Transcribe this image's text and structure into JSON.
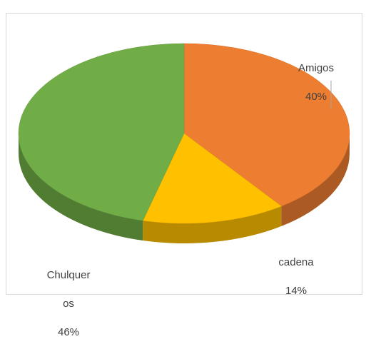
{
  "chart_data": {
    "type": "pie",
    "style": "3d",
    "categories": [
      "Amigos",
      "cadena",
      "Chulqueros"
    ],
    "values": [
      40,
      14,
      46
    ],
    "value_labels": [
      "40%",
      "14%",
      "46%"
    ],
    "colors": [
      "#ED7D31",
      "#FFC000",
      "#70AD47"
    ],
    "legend": "none",
    "labels": [
      {
        "name": "Amigos",
        "value": "40%"
      },
      {
        "name": "cadena",
        "value": "14%"
      },
      {
        "name_line1": "Chulquer",
        "name_line2": "os",
        "value": "46%"
      }
    ]
  }
}
